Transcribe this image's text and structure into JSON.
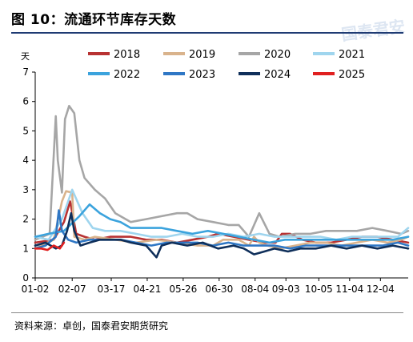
{
  "header": {
    "title": "图 10：流通环节库存天数",
    "watermark": "国泰君安"
  },
  "source": "资料来源：卓创，国泰君安期货研究",
  "chart_data": {
    "type": "line",
    "ylabel": "天",
    "ylim": [
      0,
      7
    ],
    "yticks": [
      0,
      1,
      2,
      3,
      4,
      5,
      6,
      7
    ],
    "x_tick_labels": [
      "01-02",
      "02-07",
      "03-17",
      "04-21",
      "05-26",
      "06-30",
      "08-04",
      "09-03",
      "10-05",
      "11-04",
      "12-04"
    ],
    "x_tick_days": [
      2,
      38,
      76,
      111,
      146,
      181,
      216,
      246,
      278,
      308,
      338
    ],
    "xlim_days": [
      2,
      365
    ],
    "grid": false,
    "legend_placement": "top",
    "series": [
      {
        "name": "2018",
        "color": "#b83232",
        "points": [
          [
            2,
            1.2
          ],
          [
            20,
            1.3
          ],
          [
            30,
            1.9
          ],
          [
            36,
            2.6
          ],
          [
            42,
            1.5
          ],
          [
            50,
            1.4
          ],
          [
            60,
            1.3
          ],
          [
            75,
            1.4
          ],
          [
            95,
            1.4
          ],
          [
            110,
            1.3
          ],
          [
            125,
            1.3
          ],
          [
            140,
            1.2
          ],
          [
            155,
            1.3
          ],
          [
            170,
            1.4
          ],
          [
            180,
            1.5
          ],
          [
            195,
            1.4
          ],
          [
            210,
            1.3
          ],
          [
            225,
            1.2
          ],
          [
            236,
            1.2
          ],
          [
            242,
            1.5
          ],
          [
            250,
            1.5
          ],
          [
            262,
            1.3
          ],
          [
            275,
            1.2
          ],
          [
            290,
            1.2
          ],
          [
            305,
            1.3
          ],
          [
            320,
            1.4
          ],
          [
            335,
            1.4
          ],
          [
            350,
            1.3
          ],
          [
            365,
            1.2
          ]
        ]
      },
      {
        "name": "2019",
        "color": "#d9b38c",
        "points": [
          [
            2,
            1.0
          ],
          [
            20,
            1.3
          ],
          [
            28,
            2.6
          ],
          [
            32,
            2.95
          ],
          [
            38,
            2.9
          ],
          [
            40,
            1.4
          ],
          [
            50,
            1.3
          ],
          [
            60,
            1.4
          ],
          [
            80,
            1.3
          ],
          [
            100,
            1.2
          ],
          [
            120,
            1.3
          ],
          [
            140,
            1.2
          ],
          [
            160,
            1.1
          ],
          [
            175,
            1.1
          ],
          [
            185,
            1.3
          ],
          [
            200,
            1.3
          ],
          [
            210,
            1.1
          ],
          [
            215,
            1.4
          ],
          [
            220,
            1.2
          ],
          [
            228,
            1.1
          ],
          [
            240,
            1.0
          ],
          [
            255,
            1.1
          ],
          [
            270,
            1.2
          ],
          [
            285,
            1.2
          ],
          [
            300,
            1.1
          ],
          [
            315,
            1.2
          ],
          [
            330,
            1.3
          ],
          [
            345,
            1.2
          ],
          [
            358,
            1.3
          ],
          [
            365,
            1.4
          ]
        ]
      },
      {
        "name": "2020",
        "color": "#a6a6a6",
        "points": [
          [
            2,
            1.3
          ],
          [
            16,
            1.5
          ],
          [
            22,
            5.5
          ],
          [
            24,
            4.0
          ],
          [
            28,
            2.9
          ],
          [
            31,
            5.4
          ],
          [
            35,
            5.85
          ],
          [
            40,
            5.6
          ],
          [
            45,
            4.0
          ],
          [
            50,
            3.4
          ],
          [
            60,
            3.0
          ],
          [
            70,
            2.7
          ],
          [
            80,
            2.2
          ],
          [
            95,
            1.9
          ],
          [
            110,
            2.0
          ],
          [
            125,
            2.1
          ],
          [
            140,
            2.2
          ],
          [
            150,
            2.2
          ],
          [
            160,
            2.0
          ],
          [
            175,
            1.9
          ],
          [
            190,
            1.8
          ],
          [
            200,
            1.8
          ],
          [
            210,
            1.4
          ],
          [
            220,
            2.2
          ],
          [
            230,
            1.5
          ],
          [
            240,
            1.4
          ],
          [
            255,
            1.5
          ],
          [
            270,
            1.5
          ],
          [
            285,
            1.6
          ],
          [
            300,
            1.6
          ],
          [
            315,
            1.6
          ],
          [
            330,
            1.7
          ],
          [
            345,
            1.6
          ],
          [
            358,
            1.5
          ],
          [
            365,
            1.6
          ]
        ]
      },
      {
        "name": "2021",
        "color": "#9fd5ee",
        "points": [
          [
            2,
            1.4
          ],
          [
            15,
            1.3
          ],
          [
            28,
            2.0
          ],
          [
            38,
            3.0
          ],
          [
            48,
            2.2
          ],
          [
            58,
            1.7
          ],
          [
            70,
            1.6
          ],
          [
            85,
            1.6
          ],
          [
            100,
            1.5
          ],
          [
            115,
            1.4
          ],
          [
            130,
            1.4
          ],
          [
            145,
            1.5
          ],
          [
            160,
            1.4
          ],
          [
            175,
            1.4
          ],
          [
            190,
            1.5
          ],
          [
            205,
            1.4
          ],
          [
            220,
            1.5
          ],
          [
            235,
            1.4
          ],
          [
            250,
            1.4
          ],
          [
            265,
            1.4
          ],
          [
            280,
            1.4
          ],
          [
            295,
            1.3
          ],
          [
            310,
            1.4
          ],
          [
            325,
            1.4
          ],
          [
            340,
            1.4
          ],
          [
            355,
            1.4
          ],
          [
            365,
            1.7
          ]
        ]
      },
      {
        "name": "2022",
        "color": "#3ba3dd",
        "points": [
          [
            2,
            1.4
          ],
          [
            15,
            1.5
          ],
          [
            30,
            1.6
          ],
          [
            45,
            2.1
          ],
          [
            55,
            2.5
          ],
          [
            65,
            2.2
          ],
          [
            75,
            2.0
          ],
          [
            85,
            1.9
          ],
          [
            95,
            1.7
          ],
          [
            110,
            1.7
          ],
          [
            125,
            1.7
          ],
          [
            140,
            1.6
          ],
          [
            155,
            1.5
          ],
          [
            170,
            1.6
          ],
          [
            185,
            1.5
          ],
          [
            200,
            1.4
          ],
          [
            215,
            1.3
          ],
          [
            230,
            1.2
          ],
          [
            245,
            1.3
          ],
          [
            260,
            1.3
          ],
          [
            275,
            1.3
          ],
          [
            290,
            1.3
          ],
          [
            305,
            1.3
          ],
          [
            320,
            1.3
          ],
          [
            335,
            1.3
          ],
          [
            350,
            1.3
          ],
          [
            365,
            1.4
          ]
        ]
      },
      {
        "name": "2023",
        "color": "#2f77c5",
        "points": [
          [
            2,
            1.0
          ],
          [
            12,
            1.1
          ],
          [
            22,
            1.4
          ],
          [
            25,
            2.3
          ],
          [
            28,
            1.6
          ],
          [
            34,
            1.3
          ],
          [
            42,
            1.2
          ],
          [
            55,
            1.3
          ],
          [
            70,
            1.3
          ],
          [
            85,
            1.3
          ],
          [
            100,
            1.2
          ],
          [
            115,
            1.1
          ],
          [
            130,
            1.2
          ],
          [
            145,
            1.2
          ],
          [
            160,
            1.2
          ],
          [
            175,
            1.1
          ],
          [
            190,
            1.2
          ],
          [
            205,
            1.1
          ],
          [
            220,
            1.1
          ],
          [
            235,
            1.1
          ],
          [
            250,
            1.0
          ],
          [
            265,
            1.1
          ],
          [
            280,
            1.1
          ],
          [
            295,
            1.1
          ],
          [
            310,
            1.1
          ],
          [
            325,
            1.1
          ],
          [
            340,
            1.1
          ],
          [
            355,
            1.2
          ],
          [
            365,
            1.1
          ]
        ]
      },
      {
        "name": "2024",
        "color": "#0f2f5a",
        "points": [
          [
            2,
            1.1
          ],
          [
            12,
            1.2
          ],
          [
            22,
            1.0
          ],
          [
            28,
            1.1
          ],
          [
            33,
            1.6
          ],
          [
            37,
            2.2
          ],
          [
            40,
            1.6
          ],
          [
            46,
            1.1
          ],
          [
            55,
            1.2
          ],
          [
            65,
            1.3
          ],
          [
            75,
            1.3
          ],
          [
            85,
            1.3
          ],
          [
            95,
            1.2
          ],
          [
            110,
            1.1
          ],
          [
            120,
            0.7
          ],
          [
            125,
            1.1
          ],
          [
            135,
            1.2
          ],
          [
            150,
            1.1
          ],
          [
            165,
            1.2
          ],
          [
            180,
            1.0
          ],
          [
            195,
            1.1
          ],
          [
            205,
            1.0
          ],
          [
            215,
            0.8
          ],
          [
            225,
            0.9
          ],
          [
            235,
            1.0
          ],
          [
            248,
            0.9
          ],
          [
            260,
            1.0
          ],
          [
            275,
            1.0
          ],
          [
            290,
            1.1
          ],
          [
            305,
            1.0
          ],
          [
            320,
            1.1
          ],
          [
            335,
            1.0
          ],
          [
            350,
            1.1
          ],
          [
            365,
            1.0
          ]
        ]
      },
      {
        "name": "2025",
        "color": "#e02020",
        "points": [
          [
            2,
            1.0
          ],
          [
            8,
            1.0
          ],
          [
            14,
            0.95
          ],
          [
            20,
            1.1
          ],
          [
            26,
            1.0
          ],
          [
            30,
            1.2
          ]
        ]
      }
    ]
  }
}
